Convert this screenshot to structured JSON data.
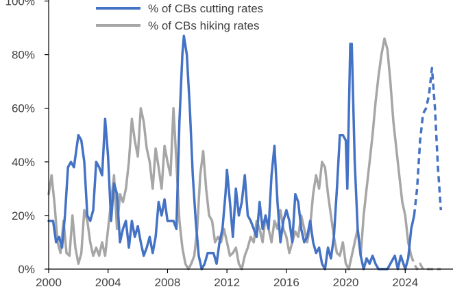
{
  "chart_data": {
    "type": "line",
    "title": "",
    "xlabel": "",
    "ylabel": "",
    "xlim": [
      2000,
      2026.2
    ],
    "ylim": [
      0,
      100
    ],
    "grid": false,
    "legend_position": "top",
    "x_ticks": [
      {
        "value": 2000,
        "label": "2000"
      },
      {
        "value": 2004,
        "label": "2004"
      },
      {
        "value": 2008,
        "label": "2008"
      },
      {
        "value": 2012,
        "label": "2012"
      },
      {
        "value": 2016,
        "label": "2016"
      },
      {
        "value": 2020,
        "label": "2020"
      },
      {
        "value": 2024,
        "label": "2024"
      }
    ],
    "y_ticks": [
      {
        "value": 0,
        "label": "0%"
      },
      {
        "value": 20,
        "label": "20%"
      },
      {
        "value": 40,
        "label": "40%"
      },
      {
        "value": 60,
        "label": "60%"
      },
      {
        "value": 80,
        "label": "80%"
      },
      {
        "value": 100,
        "label": "100%"
      }
    ],
    "series": [
      {
        "name": "% of CBs cutting rates",
        "color": "#4472c4",
        "style": "solid",
        "points": [
          [
            2000.0,
            18
          ],
          [
            2000.3,
            18
          ],
          [
            2000.5,
            10
          ],
          [
            2000.7,
            12
          ],
          [
            2000.9,
            8
          ],
          [
            2001.1,
            20
          ],
          [
            2001.3,
            38
          ],
          [
            2001.5,
            40
          ],
          [
            2001.7,
            38
          ],
          [
            2001.9,
            46
          ],
          [
            2002.0,
            50
          ],
          [
            2002.2,
            48
          ],
          [
            2002.4,
            40
          ],
          [
            2002.6,
            20
          ],
          [
            2002.8,
            18
          ],
          [
            2003.0,
            22
          ],
          [
            2003.2,
            40
          ],
          [
            2003.4,
            38
          ],
          [
            2003.6,
            35
          ],
          [
            2003.8,
            56
          ],
          [
            2004.0,
            42
          ],
          [
            2004.2,
            18
          ],
          [
            2004.4,
            32
          ],
          [
            2004.6,
            28
          ],
          [
            2004.8,
            10
          ],
          [
            2005.0,
            15
          ],
          [
            2005.2,
            18
          ],
          [
            2005.4,
            8
          ],
          [
            2005.6,
            18
          ],
          [
            2005.8,
            12
          ],
          [
            2006.0,
            16
          ],
          [
            2006.2,
            10
          ],
          [
            2006.4,
            5
          ],
          [
            2006.6,
            8
          ],
          [
            2006.8,
            12
          ],
          [
            2007.0,
            6
          ],
          [
            2007.2,
            12
          ],
          [
            2007.4,
            25
          ],
          [
            2007.6,
            20
          ],
          [
            2007.8,
            26
          ],
          [
            2008.0,
            18
          ],
          [
            2008.2,
            18
          ],
          [
            2008.4,
            18
          ],
          [
            2008.6,
            15
          ],
          [
            2008.8,
            55
          ],
          [
            2009.0,
            80
          ],
          [
            2009.1,
            87
          ],
          [
            2009.3,
            80
          ],
          [
            2009.5,
            60
          ],
          [
            2009.7,
            35
          ],
          [
            2009.9,
            18
          ],
          [
            2010.1,
            5
          ],
          [
            2010.3,
            0
          ],
          [
            2010.5,
            2
          ],
          [
            2010.7,
            6
          ],
          [
            2010.9,
            6
          ],
          [
            2011.1,
            6
          ],
          [
            2011.3,
            2
          ],
          [
            2011.5,
            10
          ],
          [
            2011.7,
            15
          ],
          [
            2011.9,
            28
          ],
          [
            2012.0,
            37
          ],
          [
            2012.2,
            25
          ],
          [
            2012.4,
            12
          ],
          [
            2012.6,
            30
          ],
          [
            2012.8,
            20
          ],
          [
            2013.0,
            25
          ],
          [
            2013.2,
            35
          ],
          [
            2013.4,
            20
          ],
          [
            2013.6,
            18
          ],
          [
            2013.8,
            15
          ],
          [
            2014.0,
            12
          ],
          [
            2014.2,
            25
          ],
          [
            2014.4,
            15
          ],
          [
            2014.6,
            20
          ],
          [
            2014.8,
            15
          ],
          [
            2015.0,
            35
          ],
          [
            2015.2,
            46
          ],
          [
            2015.4,
            25
          ],
          [
            2015.6,
            10
          ],
          [
            2015.8,
            18
          ],
          [
            2016.0,
            22
          ],
          [
            2016.2,
            18
          ],
          [
            2016.4,
            10
          ],
          [
            2016.6,
            28
          ],
          [
            2016.8,
            25
          ],
          [
            2017.0,
            15
          ],
          [
            2017.2,
            10
          ],
          [
            2017.4,
            12
          ],
          [
            2017.6,
            18
          ],
          [
            2017.8,
            10
          ],
          [
            2018.0,
            6
          ],
          [
            2018.2,
            8
          ],
          [
            2018.4,
            2
          ],
          [
            2018.6,
            0
          ],
          [
            2018.8,
            8
          ],
          [
            2019.0,
            4
          ],
          [
            2019.2,
            12
          ],
          [
            2019.4,
            30
          ],
          [
            2019.6,
            50
          ],
          [
            2019.8,
            50
          ],
          [
            2020.0,
            48
          ],
          [
            2020.1,
            30
          ],
          [
            2020.3,
            84
          ],
          [
            2020.4,
            84
          ],
          [
            2020.6,
            40
          ],
          [
            2020.8,
            15
          ],
          [
            2021.0,
            5
          ],
          [
            2021.2,
            0
          ],
          [
            2021.4,
            4
          ],
          [
            2021.6,
            2
          ],
          [
            2021.8,
            5
          ],
          [
            2022.0,
            2
          ],
          [
            2022.2,
            0
          ],
          [
            2022.5,
            0
          ],
          [
            2022.8,
            0
          ],
          [
            2023.0,
            2
          ],
          [
            2023.3,
            5
          ],
          [
            2023.5,
            0
          ],
          [
            2023.7,
            5
          ],
          [
            2024.0,
            0
          ],
          [
            2024.2,
            4
          ],
          [
            2024.4,
            15
          ],
          [
            2024.6,
            20
          ]
        ]
      },
      {
        "name": "",
        "color": "#4472c4",
        "style": "dashed",
        "points": [
          [
            2024.6,
            20
          ],
          [
            2024.8,
            30
          ],
          [
            2025.0,
            48
          ],
          [
            2025.2,
            58
          ],
          [
            2025.4,
            60
          ],
          [
            2025.6,
            65
          ],
          [
            2025.8,
            75
          ],
          [
            2026.0,
            60
          ],
          [
            2026.2,
            38
          ],
          [
            2026.4,
            22
          ]
        ]
      },
      {
        "name": "% of CBs hiking rates",
        "color": "#a6a6a6",
        "style": "solid",
        "points": [
          [
            2000.0,
            28
          ],
          [
            2000.2,
            35
          ],
          [
            2000.4,
            24
          ],
          [
            2000.6,
            10
          ],
          [
            2000.8,
            6
          ],
          [
            2001.0,
            18
          ],
          [
            2001.2,
            6
          ],
          [
            2001.4,
            5
          ],
          [
            2001.6,
            20
          ],
          [
            2001.8,
            8
          ],
          [
            2002.0,
            2
          ],
          [
            2002.2,
            6
          ],
          [
            2002.4,
            22
          ],
          [
            2002.6,
            18
          ],
          [
            2002.8,
            10
          ],
          [
            2003.0,
            5
          ],
          [
            2003.2,
            8
          ],
          [
            2003.4,
            5
          ],
          [
            2003.6,
            10
          ],
          [
            2003.8,
            5
          ],
          [
            2004.0,
            15
          ],
          [
            2004.2,
            25
          ],
          [
            2004.4,
            35
          ],
          [
            2004.6,
            15
          ],
          [
            2004.8,
            28
          ],
          [
            2005.0,
            25
          ],
          [
            2005.2,
            30
          ],
          [
            2005.4,
            40
          ],
          [
            2005.6,
            56
          ],
          [
            2005.8,
            48
          ],
          [
            2006.0,
            42
          ],
          [
            2006.2,
            60
          ],
          [
            2006.4,
            55
          ],
          [
            2006.6,
            45
          ],
          [
            2006.8,
            40
          ],
          [
            2007.0,
            30
          ],
          [
            2007.2,
            45
          ],
          [
            2007.4,
            38
          ],
          [
            2007.6,
            30
          ],
          [
            2007.8,
            46
          ],
          [
            2008.0,
            40
          ],
          [
            2008.2,
            35
          ],
          [
            2008.4,
            60
          ],
          [
            2008.6,
            40
          ],
          [
            2008.8,
            18
          ],
          [
            2009.0,
            8
          ],
          [
            2009.2,
            2
          ],
          [
            2009.4,
            0
          ],
          [
            2009.6,
            2
          ],
          [
            2009.8,
            5
          ],
          [
            2010.0,
            15
          ],
          [
            2010.2,
            35
          ],
          [
            2010.4,
            44
          ],
          [
            2010.6,
            30
          ],
          [
            2010.8,
            20
          ],
          [
            2011.0,
            18
          ],
          [
            2011.2,
            10
          ],
          [
            2011.4,
            12
          ],
          [
            2011.6,
            10
          ],
          [
            2011.8,
            15
          ],
          [
            2012.0,
            10
          ],
          [
            2012.2,
            5
          ],
          [
            2012.4,
            6
          ],
          [
            2012.6,
            8
          ],
          [
            2012.8,
            2
          ],
          [
            2013.0,
            0
          ],
          [
            2013.2,
            5
          ],
          [
            2013.4,
            8
          ],
          [
            2013.6,
            12
          ],
          [
            2013.8,
            10
          ],
          [
            2014.0,
            18
          ],
          [
            2014.2,
            15
          ],
          [
            2014.4,
            10
          ],
          [
            2014.6,
            20
          ],
          [
            2014.8,
            15
          ],
          [
            2015.0,
            10
          ],
          [
            2015.2,
            18
          ],
          [
            2015.4,
            15
          ],
          [
            2015.6,
            22
          ],
          [
            2015.8,
            15
          ],
          [
            2016.0,
            12
          ],
          [
            2016.2,
            6
          ],
          [
            2016.4,
            10
          ],
          [
            2016.6,
            14
          ],
          [
            2016.8,
            12
          ],
          [
            2017.0,
            20
          ],
          [
            2017.2,
            15
          ],
          [
            2017.4,
            10
          ],
          [
            2017.6,
            16
          ],
          [
            2017.8,
            28
          ],
          [
            2018.0,
            35
          ],
          [
            2018.2,
            30
          ],
          [
            2018.4,
            40
          ],
          [
            2018.6,
            38
          ],
          [
            2018.8,
            28
          ],
          [
            2019.0,
            20
          ],
          [
            2019.2,
            12
          ],
          [
            2019.4,
            6
          ],
          [
            2019.6,
            5
          ],
          [
            2019.8,
            10
          ],
          [
            2020.0,
            2
          ],
          [
            2020.2,
            0
          ],
          [
            2020.4,
            5
          ],
          [
            2020.6,
            10
          ],
          [
            2020.8,
            15
          ],
          [
            2021.0,
            5
          ],
          [
            2021.2,
            20
          ],
          [
            2021.4,
            30
          ],
          [
            2021.6,
            40
          ],
          [
            2021.8,
            50
          ],
          [
            2022.0,
            62
          ],
          [
            2022.2,
            72
          ],
          [
            2022.4,
            80
          ],
          [
            2022.6,
            86
          ],
          [
            2022.8,
            82
          ],
          [
            2023.0,
            70
          ],
          [
            2023.2,
            55
          ],
          [
            2023.4,
            45
          ],
          [
            2023.6,
            35
          ],
          [
            2023.8,
            25
          ],
          [
            2024.0,
            20
          ],
          [
            2024.2,
            10
          ],
          [
            2024.4,
            5
          ]
        ]
      },
      {
        "name": "",
        "color": "#a6a6a6",
        "style": "dashed",
        "points": [
          [
            2024.4,
            5
          ],
          [
            2024.6,
            2
          ],
          [
            2024.8,
            0
          ],
          [
            2025.0,
            2
          ],
          [
            2025.2,
            0
          ],
          [
            2025.6,
            0
          ],
          [
            2026.0,
            0
          ],
          [
            2026.4,
            0
          ]
        ]
      }
    ]
  }
}
